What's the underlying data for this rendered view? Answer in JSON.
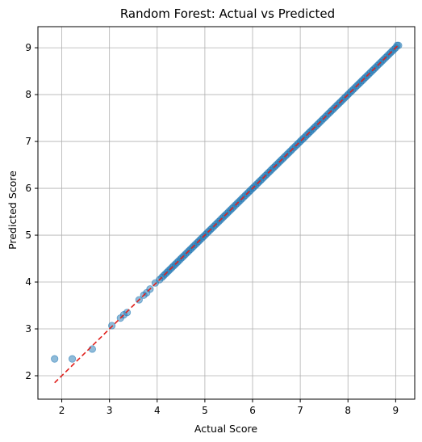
{
  "chart_data": {
    "type": "scatter",
    "title": "Random Forest: Actual vs Predicted",
    "xlabel": "Actual Score",
    "ylabel": "Predicted Score",
    "xlim": [
      1.5,
      9.4
    ],
    "ylim": [
      1.5,
      9.45
    ],
    "xticks": [
      "2",
      "3",
      "4",
      "5",
      "6",
      "7",
      "8",
      "9"
    ],
    "yticks": [
      "2",
      "3",
      "4",
      "5",
      "6",
      "7",
      "8",
      "9"
    ],
    "grid": true,
    "reference_line": {
      "style": "dashed",
      "color": "#e0201c",
      "from": [
        1.85,
        1.85
      ],
      "to": [
        9.05,
        9.05
      ]
    },
    "series": [
      {
        "color": "#1f77b4",
        "points": [
          [
            1.85,
            2.36
          ],
          [
            2.22,
            2.36
          ],
          [
            2.64,
            2.57
          ],
          [
            3.05,
            3.07
          ],
          [
            3.23,
            3.23
          ],
          [
            3.3,
            3.3
          ],
          [
            3.37,
            3.35
          ],
          [
            3.62,
            3.62
          ],
          [
            3.72,
            3.72
          ],
          [
            3.78,
            3.77
          ],
          [
            3.85,
            3.85
          ],
          [
            3.96,
            3.98
          ],
          [
            4.05,
            4.05
          ]
        ],
        "dense_range": [
          4.1,
          9.0
        ],
        "dense_step": 0.035,
        "end_points": [
          [
            9.03,
            9.05
          ],
          [
            9.06,
            9.05
          ]
        ]
      }
    ]
  }
}
